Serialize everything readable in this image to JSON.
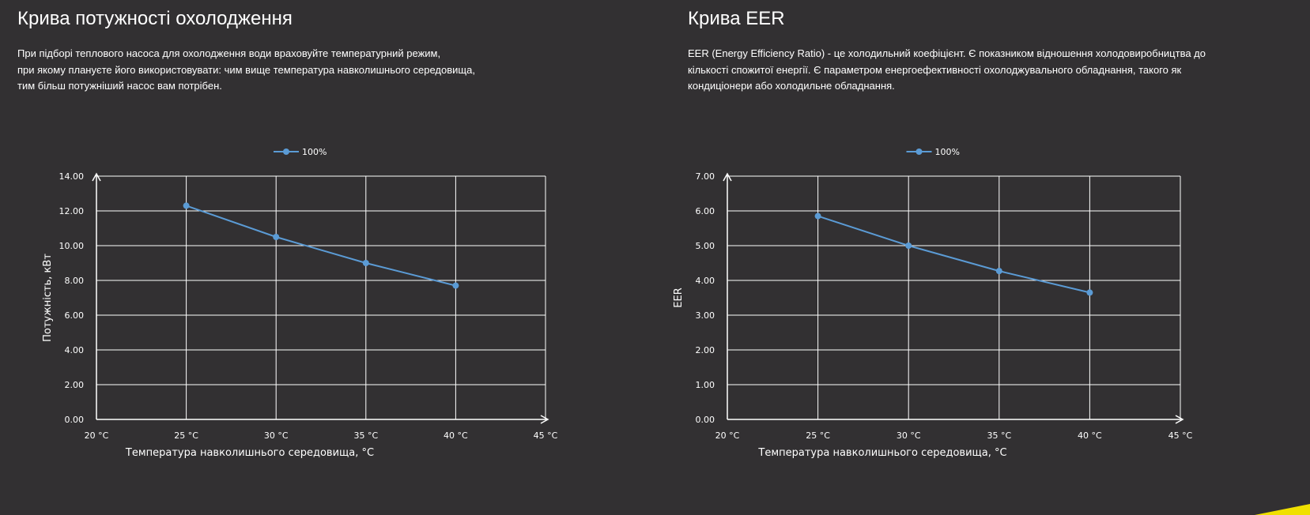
{
  "left_panel": {
    "title": "Крива потужності охолодження",
    "paragraph_lines": [
      "При підборі теплового насоса для охолодження води враховуйте температурний режим,",
      "при якому плануєте його використовувати: чим вище температура навколишнього середовища,",
      "тим більш потужніший насос вам потрібен."
    ]
  },
  "right_panel": {
    "title": "Крива EER",
    "paragraph_lines": [
      "EER (Energy Efficiency Ratio) - це холодильний коефіцієнт. Є показником відношення холодовиробництва до",
      "кількості спожитої енергії. Є параметром енергоефективності охолоджувального обладнання, такого як",
      "кондиціонери або холодильне обладнання."
    ]
  },
  "colors": {
    "background": "#323032",
    "series_line": "#5b9bd5",
    "grid": "#ffffff",
    "text": "#ffffff",
    "accent_corner": "#f0e000"
  },
  "chart_data": [
    {
      "type": "line",
      "title": "",
      "xlabel": "Температура навколишнього середовища, °C",
      "ylabel": "Потужність, кВт",
      "categories": [
        "20 °C",
        "25 °C",
        "30 °C",
        "35 °C",
        "40 °C",
        "45 °C"
      ],
      "yticks": [
        "0.00",
        "2.00",
        "4.00",
        "6.00",
        "8.00",
        "10.00",
        "12.00",
        "14.00"
      ],
      "ylim": [
        0,
        14
      ],
      "grid": true,
      "legend_position": "top-center",
      "series": [
        {
          "name": "100%",
          "x": [
            25,
            30,
            35,
            40
          ],
          "values": [
            12.3,
            10.5,
            9.0,
            7.7
          ]
        }
      ]
    },
    {
      "type": "line",
      "title": "",
      "xlabel": "Температура навколишнього середовища, °C",
      "ylabel": "EER",
      "categories": [
        "20 °C",
        "25 °C",
        "30 °C",
        "35 °C",
        "40 °C",
        "45 °C"
      ],
      "yticks": [
        "0.00",
        "1.00",
        "2.00",
        "3.00",
        "4.00",
        "5.00",
        "6.00",
        "7.00"
      ],
      "ylim": [
        0,
        7
      ],
      "grid": true,
      "legend_position": "top-center",
      "series": [
        {
          "name": "100%",
          "x": [
            25,
            30,
            35,
            40
          ],
          "values": [
            5.85,
            5.0,
            4.27,
            3.65
          ]
        }
      ]
    }
  ]
}
